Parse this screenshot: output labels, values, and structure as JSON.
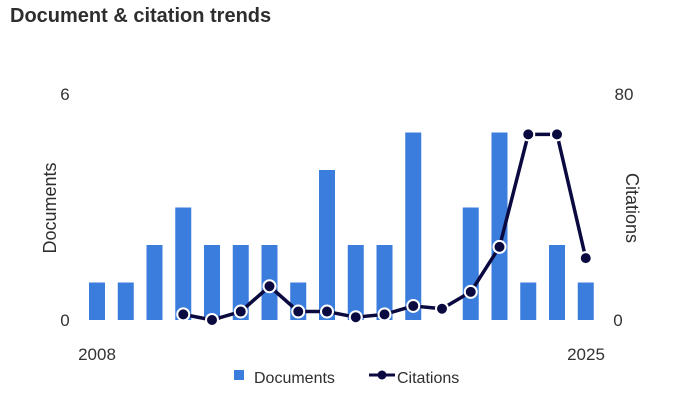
{
  "title": "Document & citation trends",
  "chart_data": {
    "type": "bar+line",
    "x": [
      2008,
      2009,
      2010,
      2011,
      2012,
      2013,
      2014,
      2015,
      2016,
      2017,
      2018,
      2019,
      2020,
      2021,
      2022,
      2023,
      2024,
      2025
    ],
    "x_tick_labels": [
      "2008",
      "2025"
    ],
    "series": [
      {
        "name": "Documents",
        "type": "bar",
        "axis": "left",
        "color": "#3b7ddd",
        "values": [
          1,
          1,
          2,
          3,
          2,
          2,
          2,
          1,
          4,
          2,
          2,
          5,
          0,
          3,
          5,
          1,
          2,
          1
        ]
      },
      {
        "name": "Citations",
        "type": "line",
        "axis": "right",
        "color": "#0a0a40",
        "values": [
          null,
          null,
          null,
          2,
          0,
          3,
          12,
          3,
          3,
          1,
          2,
          5,
          4,
          10,
          26,
          66,
          66,
          22
        ]
      }
    ],
    "ylabel_left": "Documents",
    "ylabel_right": "Citations",
    "ylim_left": [
      0,
      6
    ],
    "ylim_right": [
      0,
      80
    ],
    "yticks_left": [
      "0",
      "6"
    ],
    "yticks_right": [
      "0",
      "80"
    ],
    "grid": false,
    "legend": "bottom"
  }
}
